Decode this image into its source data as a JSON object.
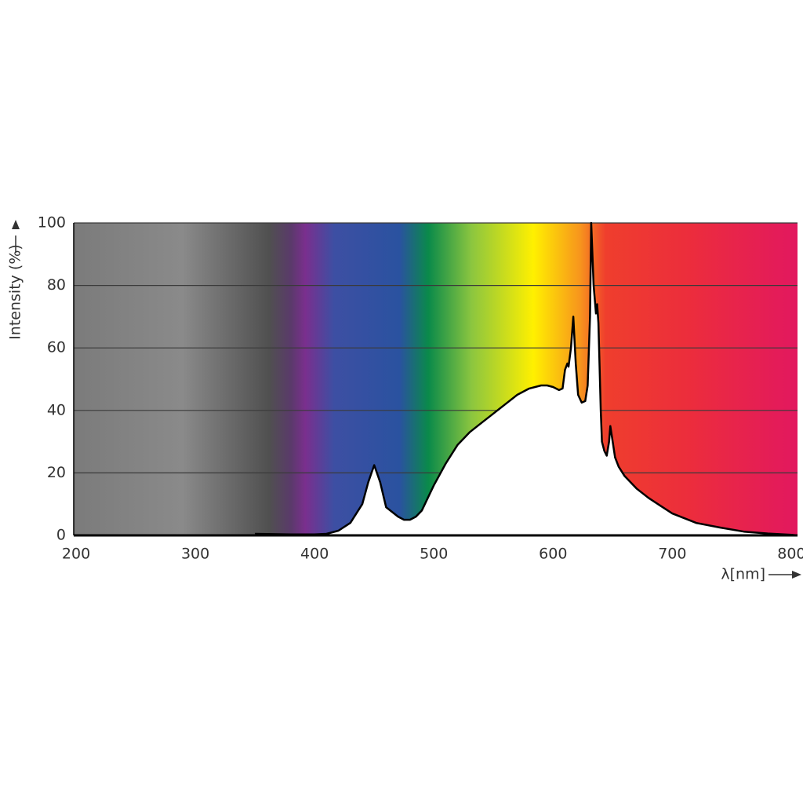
{
  "chart_data": {
    "type": "area",
    "ylabel": "Intensity (%)",
    "xlabel": "λ[nm]",
    "x": [
      350,
      380,
      400,
      410,
      420,
      430,
      440,
      445,
      450,
      455,
      460,
      465,
      470,
      475,
      480,
      485,
      490,
      495,
      500,
      510,
      520,
      530,
      540,
      550,
      560,
      570,
      580,
      590,
      595,
      600,
      605,
      608,
      610,
      612,
      613,
      615,
      617,
      619,
      621,
      624,
      627,
      629,
      631,
      632,
      634,
      636,
      637,
      638,
      640,
      641,
      643,
      645,
      647,
      648,
      650,
      652,
      655,
      660,
      670,
      680,
      690,
      700,
      710,
      720,
      740,
      760,
      780,
      800,
      805
    ],
    "values": [
      0.5,
      0.3,
      0.3,
      0.5,
      1.5,
      4,
      10,
      17,
      22.5,
      17,
      9,
      7.5,
      6,
      5,
      5,
      6,
      8,
      12,
      16,
      23,
      29,
      33,
      36,
      39,
      42,
      45,
      47,
      48,
      48,
      47.5,
      46.5,
      47,
      53,
      55,
      54,
      60,
      70,
      55,
      45,
      42.5,
      43,
      48,
      70,
      100,
      80,
      71,
      74,
      68,
      40,
      30,
      27,
      25.5,
      30,
      35,
      30,
      25,
      22,
      19,
      15,
      12,
      9.5,
      7,
      5.5,
      4,
      2.5,
      1.2,
      0.6,
      0.2,
      0
    ],
    "color": "#ffffff",
    "xlim": [
      198,
      805
    ],
    "ylim": [
      0,
      100
    ],
    "xticks": [
      200,
      300,
      400,
      500,
      600,
      700,
      800
    ],
    "yticks": [
      0,
      20,
      40,
      60,
      80,
      100
    ],
    "grid": true
  }
}
